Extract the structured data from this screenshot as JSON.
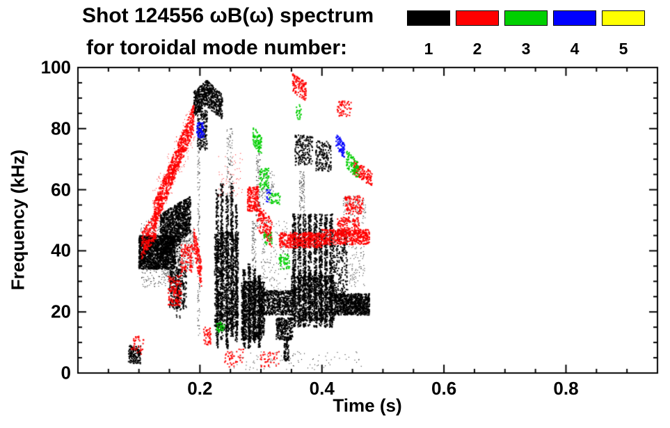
{
  "header": {
    "title": "Shot 124556 ωB(ω) spectrum",
    "subtitle": "for toroidal mode number:",
    "legend": [
      {
        "label": "1",
        "color": "#000000"
      },
      {
        "label": "2",
        "color": "#ff0000"
      },
      {
        "label": "3",
        "color": "#00d000"
      },
      {
        "label": "4",
        "color": "#0000ff"
      },
      {
        "label": "5",
        "color": "#ffff00"
      }
    ]
  },
  "chart_data": {
    "type": "scatter",
    "title": "Shot 124556 ωB(ω) spectrum",
    "subtitle": "for toroidal mode number:",
    "xlabel": "Time (s)",
    "ylabel": "Frequency (kHz)",
    "xlim": [
      0.0,
      0.95
    ],
    "ylim": [
      0,
      100
    ],
    "grid": false,
    "legend_position": "top-right",
    "xticks": {
      "major": [
        0.2,
        0.4,
        0.6,
        0.8
      ],
      "labels": [
        "0.2",
        "0.4",
        "0.6",
        "0.8"
      ],
      "minor": [
        0.05,
        0.1,
        0.15,
        0.25,
        0.3,
        0.35,
        0.45,
        0.5,
        0.55,
        0.65,
        0.7,
        0.75,
        0.85,
        0.9
      ]
    },
    "yticks": {
      "major": [
        0,
        20,
        40,
        60,
        80,
        100
      ],
      "labels": [
        "0",
        "20",
        "40",
        "60",
        "80",
        "100"
      ],
      "minor": [
        5,
        10,
        15,
        25,
        30,
        35,
        45,
        50,
        55,
        65,
        70,
        75,
        85,
        90,
        95
      ]
    },
    "series": [
      {
        "name": "toroidal mode n=1",
        "legend_label": "1",
        "color": "#000000",
        "clusters": [
          {
            "t": [
              0.083,
              0.103
            ],
            "f0": [
              3,
              9
            ],
            "n": 140
          },
          {
            "t": [
              0.1,
              0.16
            ],
            "f0": [
              34,
              45
            ],
            "n": 1500
          },
          {
            "t": [
              0.103,
              0.158
            ],
            "f0": [
              28,
              50
            ],
            "n": 350,
            "s": 1
          },
          {
            "t": [
              0.135,
              0.185
            ],
            "f0": [
              38,
              52
            ],
            "f1": [
              46,
              58
            ],
            "n": 1000
          },
          {
            "t": [
              0.14,
              0.19
            ],
            "f0": [
              30,
              44
            ],
            "f1": [
              34,
              48
            ],
            "n": 400,
            "s": 1
          },
          {
            "t": [
              0.15,
              0.178
            ],
            "f0": [
              21,
              34
            ],
            "n": 260
          },
          {
            "t": [
              0.16,
              0.169
            ],
            "f0": [
              18,
              55
            ],
            "n": 140
          },
          {
            "t": [
              0.196,
              0.2
            ],
            "f0": [
              12,
              85
            ],
            "n": 150,
            "s": 1
          },
          {
            "t": [
              0.19,
              0.212
            ],
            "f0": [
              84,
              92
            ],
            "f1": [
              88,
              96
            ],
            "n": 320
          },
          {
            "t": [
              0.212,
              0.237
            ],
            "f0": [
              87,
              96
            ],
            "f1": [
              83,
              91
            ],
            "n": 300
          },
          {
            "t": [
              0.196,
              0.212
            ],
            "f0": [
              73,
              86
            ],
            "n": 160
          },
          {
            "t": [
              0.224,
              0.263
            ],
            "f0": [
              14,
              46
            ],
            "n": 900
          },
          {
            "t": [
              0.2265,
              0.2305
            ],
            "f0": [
              8,
              60
            ],
            "n": 260
          },
          {
            "t": [
              0.234,
              0.238
            ],
            "f0": [
              10,
              62
            ],
            "n": 260
          },
          {
            "t": [
              0.2425,
              0.2465
            ],
            "f0": [
              8,
              58
            ],
            "n": 260
          },
          {
            "t": [
              0.2505,
              0.2545
            ],
            "f0": [
              12,
              62
            ],
            "n": 260
          },
          {
            "t": [
              0.258,
              0.262
            ],
            "f0": [
              10,
              55
            ],
            "n": 220
          },
          {
            "t": [
              0.244,
              0.254
            ],
            "f0": [
              55,
              80
            ],
            "n": 110,
            "s": 1
          },
          {
            "t": [
              0.268,
              0.306
            ],
            "f0": [
              11,
              30
            ],
            "n": 750
          },
          {
            "t": [
              0.2705,
              0.2745
            ],
            "f0": [
              8,
              34
            ],
            "n": 180
          },
          {
            "t": [
              0.279,
              0.283
            ],
            "f0": [
              8,
              36
            ],
            "n": 180
          },
          {
            "t": [
              0.2875,
              0.2915
            ],
            "f0": [
              10,
              34
            ],
            "n": 180
          },
          {
            "t": [
              0.2955,
              0.2995
            ],
            "f0": [
              8,
              32
            ],
            "n": 180
          },
          {
            "t": [
              0.292,
              0.299
            ],
            "f0": [
              48,
              72
            ],
            "n": 110,
            "s": 1
          },
          {
            "t": [
              0.285,
              0.292
            ],
            "f0": [
              32,
              50
            ],
            "n": 90,
            "s": 1
          },
          {
            "t": [
              0.3,
              0.352
            ],
            "f0": [
              19,
              27
            ],
            "n": 550
          },
          {
            "t": [
              0.325,
              0.352
            ],
            "f0": [
              11,
              18
            ],
            "n": 260
          },
          {
            "t": [
              0.338,
              0.346
            ],
            "f0": [
              4,
              12
            ],
            "n": 90
          },
          {
            "t": [
              0.3,
              0.345
            ],
            "f0": [
              27,
              50
            ],
            "n": 160,
            "s": 1
          },
          {
            "t": [
              0.3,
              0.322
            ],
            "f0": [
              55,
              66
            ],
            "n": 70,
            "s": 1
          },
          {
            "t": [
              0.35,
              0.42
            ],
            "f0": [
              17,
              32
            ],
            "n": 900
          },
          {
            "t": [
              0.352,
              0.357
            ],
            "f0": [
              15,
              52
            ],
            "n": 240
          },
          {
            "t": [
              0.3605,
              0.3655
            ],
            "f0": [
              15,
              52
            ],
            "n": 240
          },
          {
            "t": [
              0.369,
              0.374
            ],
            "f0": [
              15,
              52
            ],
            "n": 240
          },
          {
            "t": [
              0.3775,
              0.3825
            ],
            "f0": [
              15,
              52
            ],
            "n": 240
          },
          {
            "t": [
              0.387,
              0.392
            ],
            "f0": [
              15,
              52
            ],
            "n": 240
          },
          {
            "t": [
              0.3955,
              0.4005
            ],
            "f0": [
              15,
              52
            ],
            "n": 240
          },
          {
            "t": [
              0.404,
              0.409
            ],
            "f0": [
              15,
              52
            ],
            "n": 240
          },
          {
            "t": [
              0.4125,
              0.4175
            ],
            "f0": [
              15,
              52
            ],
            "n": 240
          },
          {
            "t": [
              0.363,
              0.372
            ],
            "f0": [
              52,
              66
            ],
            "n": 90,
            "s": 1
          },
          {
            "t": [
              0.356,
              0.385
            ],
            "f0": [
              68,
              78
            ],
            "n": 180
          },
          {
            "t": [
              0.39,
              0.415
            ],
            "f0": [
              66,
              76
            ],
            "n": 160
          },
          {
            "t": [
              0.418,
              0.442
            ],
            "f0": [
              25,
              47
            ],
            "n": 220
          },
          {
            "t": [
              0.42,
              0.478
            ],
            "f0": [
              19,
              26
            ],
            "n": 850
          },
          {
            "t": [
              0.442,
              0.47
            ],
            "f0": [
              28,
              42
            ],
            "n": 80,
            "s": 1
          },
          {
            "t": [
              0.435,
              0.472
            ],
            "f0": [
              49,
              58
            ],
            "n": 110,
            "s": 1
          },
          {
            "t": [
              0.25,
              0.47
            ],
            "f0": [
              1,
              7
            ],
            "n": 90,
            "s": 1
          }
        ]
      },
      {
        "name": "toroidal mode n=2",
        "legend_label": "2",
        "color": "#ff0000",
        "clusters": [
          {
            "t": [
              0.104,
              0.128
            ],
            "f0": [
              37,
              46
            ],
            "f1": [
              44,
              53
            ],
            "n": 200
          },
          {
            "t": [
              0.125,
              0.19
            ],
            "f0": [
              47,
              56
            ],
            "f1": [
              79,
              88
            ],
            "n": 750
          },
          {
            "t": [
              0.122,
              0.192
            ],
            "f0": [
              44,
              60
            ],
            "f1": [
              75,
              91
            ],
            "n": 220,
            "s": 1
          },
          {
            "t": [
              0.148,
              0.17
            ],
            "f0": [
              22,
              32
            ],
            "n": 130
          },
          {
            "t": [
              0.168,
              0.188
            ],
            "f0": [
              33,
              42
            ],
            "n": 110
          },
          {
            "t": [
              0.19,
              0.203
            ],
            "f0": [
              40,
              48
            ],
            "f1": [
              27,
              36
            ],
            "n": 130
          },
          {
            "t": [
              0.206,
              0.218
            ],
            "f0": [
              9,
              15
            ],
            "n": 45
          },
          {
            "t": [
              0.278,
              0.296
            ],
            "f0": [
              53,
              61
            ],
            "n": 170
          },
          {
            "t": [
              0.294,
              0.318
            ],
            "f0": [
              47,
              56
            ],
            "f1": [
              41,
              50
            ],
            "n": 160
          },
          {
            "t": [
              0.33,
              0.4
            ],
            "f0": [
              41,
              46
            ],
            "n": 430
          },
          {
            "t": [
              0.4,
              0.478
            ],
            "f0": [
              42,
              47
            ],
            "n": 430
          },
          {
            "t": [
              0.425,
              0.462
            ],
            "f0": [
              45,
              51
            ],
            "n": 150
          },
          {
            "t": [
              0.352,
              0.374
            ],
            "f0": [
              92,
              98
            ],
            "f1": [
              89,
              95
            ],
            "n": 120
          },
          {
            "t": [
              0.425,
              0.448
            ],
            "f0": [
              84,
              89
            ],
            "n": 55
          },
          {
            "t": [
              0.452,
              0.482
            ],
            "f0": [
              65,
              70
            ],
            "f1": [
              61,
              66
            ],
            "n": 150
          },
          {
            "t": [
              0.438,
              0.468
            ],
            "f0": [
              52,
              58
            ],
            "n": 110
          },
          {
            "t": [
              0.23,
              0.27
            ],
            "f0": [
              58,
              72
            ],
            "n": 60,
            "s": 1
          },
          {
            "t": [
              0.088,
              0.108
            ],
            "f0": [
              6,
              12
            ],
            "n": 35
          },
          {
            "t": [
              0.24,
              0.272
            ],
            "f0": [
              2,
              8
            ],
            "n": 45
          },
          {
            "t": [
              0.298,
              0.33
            ],
            "f0": [
              2,
              7
            ],
            "n": 40
          }
        ]
      },
      {
        "name": "toroidal mode n=3",
        "legend_label": "3",
        "color": "#00d000",
        "clusters": [
          {
            "t": [
              0.287,
              0.301
            ],
            "f0": [
              75,
              81
            ],
            "f1": [
              71,
              77
            ],
            "n": 85
          },
          {
            "t": [
              0.298,
              0.313
            ],
            "f0": [
              60,
              67
            ],
            "n": 75
          },
          {
            "t": [
              0.313,
              0.332
            ],
            "f0": [
              55,
              59
            ],
            "n": 40
          },
          {
            "t": [
              0.33,
              0.347
            ],
            "f0": [
              34,
              39
            ],
            "n": 55
          },
          {
            "t": [
              0.44,
              0.462
            ],
            "f0": [
              67,
              73
            ],
            "f1": [
              63,
              69
            ],
            "n": 90
          },
          {
            "t": [
              0.227,
              0.24
            ],
            "f0": [
              13,
              17
            ],
            "n": 30
          },
          {
            "t": [
              0.357,
              0.366
            ],
            "f0": [
              83,
              88
            ],
            "n": 22
          },
          {
            "t": [
              0.305,
              0.318
            ],
            "f0": [
              42,
              46
            ],
            "n": 25
          }
        ]
      },
      {
        "name": "toroidal mode n=4",
        "legend_label": "4",
        "color": "#0000ff",
        "clusters": [
          {
            "t": [
              0.195,
              0.207
            ],
            "f0": [
              77,
              82
            ],
            "n": 65
          },
          {
            "t": [
              0.423,
              0.437
            ],
            "f0": [
              74,
              79
            ],
            "f1": [
              70,
              75
            ],
            "n": 75
          },
          {
            "t": [
              0.308,
              0.316
            ],
            "f0": [
              56,
              60
            ],
            "n": 14
          }
        ]
      },
      {
        "name": "toroidal mode n=5",
        "legend_label": "5",
        "color": "#ffff00",
        "clusters": []
      }
    ]
  }
}
